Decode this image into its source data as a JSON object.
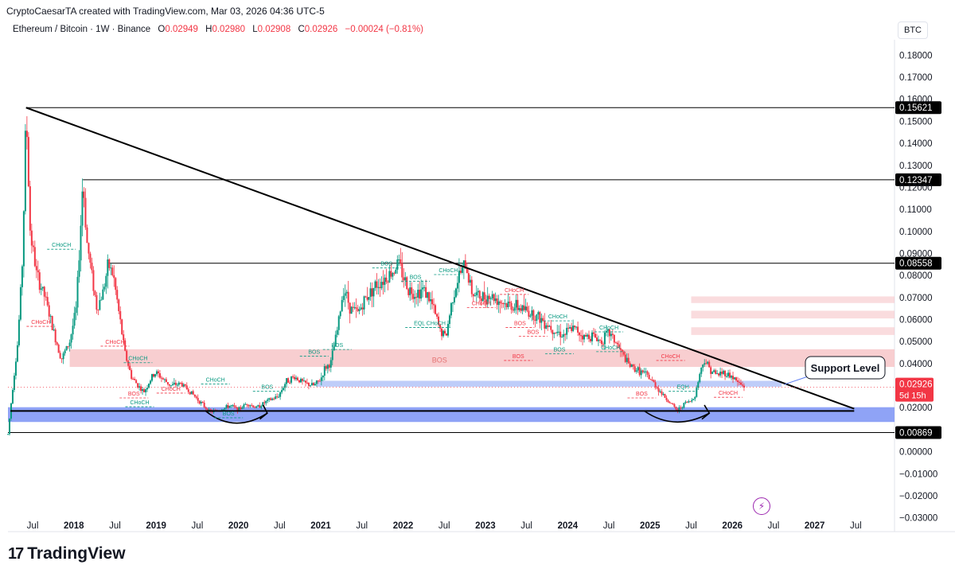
{
  "header": {
    "author_line": "CryptoCaesarTA created with TradingView.com, Mar 03, 2026 04:36 UTC-5"
  },
  "legend": {
    "symbol": "Ethereum / Bitcoin · 1W · Binance",
    "open_label": "O",
    "open_value": "0.02949",
    "high_label": "H",
    "high_value": "0.02980",
    "low_label": "L",
    "low_value": "0.02908",
    "close_label": "C",
    "close_value": "0.02926",
    "change": "−0.00024 (−0.81%)"
  },
  "currency": "BTC",
  "colors": {
    "bull": "#089981",
    "bear": "#f23645",
    "zone_red": "#f7c5c8",
    "zone_blue": "#7b93f5",
    "support_fill": "#5b7cf2",
    "trendline": "#000000"
  },
  "chart_data": {
    "type": "candlestick",
    "title": "Ethereum / Bitcoin · 1W · Binance",
    "ylim": [
      -0.03,
      0.19
    ],
    "y_ticks": [
      "0.18000",
      "0.17000",
      "0.16000",
      "0.15000",
      "0.14000",
      "0.13000",
      "0.12000",
      "0.11000",
      "0.10000",
      "0.09000",
      "0.08000",
      "0.07000",
      "0.06000",
      "0.05000",
      "0.04000",
      "0.03000",
      "0.02000",
      "0.01000",
      "0.00000",
      "−0.01000",
      "−0.02000",
      "−0.03000"
    ],
    "y_tick_values": [
      0.18,
      0.17,
      0.16,
      0.15,
      0.14,
      0.13,
      0.12,
      0.11,
      0.1,
      0.09,
      0.08,
      0.07,
      0.06,
      0.05,
      0.04,
      0.03,
      0.02,
      0.01,
      0.0,
      -0.01,
      -0.02,
      -0.03
    ],
    "x_labels": [
      {
        "t": 2017.5,
        "label": "Jul"
      },
      {
        "t": 2018.0,
        "label": "2018"
      },
      {
        "t": 2018.5,
        "label": "Jul"
      },
      {
        "t": 2019.0,
        "label": "2019"
      },
      {
        "t": 2019.5,
        "label": "Jul"
      },
      {
        "t": 2020.0,
        "label": "2020"
      },
      {
        "t": 2020.5,
        "label": "Jul"
      },
      {
        "t": 2021.0,
        "label": "2021"
      },
      {
        "t": 2021.5,
        "label": "Jul"
      },
      {
        "t": 2022.0,
        "label": "2022"
      },
      {
        "t": 2022.5,
        "label": "Jul"
      },
      {
        "t": 2023.0,
        "label": "2023"
      },
      {
        "t": 2023.5,
        "label": "Jul"
      },
      {
        "t": 2024.0,
        "label": "2024"
      },
      {
        "t": 2024.5,
        "label": "Jul"
      },
      {
        "t": 2025.0,
        "label": "2025"
      },
      {
        "t": 2025.5,
        "label": "Jul"
      },
      {
        "t": 2026.0,
        "label": "2026"
      },
      {
        "t": 2026.5,
        "label": "Jul"
      },
      {
        "t": 2027.0,
        "label": "2027"
      },
      {
        "t": 2027.5,
        "label": "Jul"
      }
    ],
    "x_range": [
      2017.2,
      2027.97
    ],
    "price_path": [
      [
        2017.2,
        0.008
      ],
      [
        2017.26,
        0.03
      ],
      [
        2017.32,
        0.05
      ],
      [
        2017.38,
        0.09
      ],
      [
        2017.42,
        0.1562
      ],
      [
        2017.47,
        0.1
      ],
      [
        2017.55,
        0.08
      ],
      [
        2017.65,
        0.07
      ],
      [
        2017.75,
        0.055
      ],
      [
        2017.85,
        0.042
      ],
      [
        2017.95,
        0.05
      ],
      [
        2018.03,
        0.065
      ],
      [
        2018.08,
        0.1
      ],
      [
        2018.11,
        0.12347
      ],
      [
        2018.16,
        0.095
      ],
      [
        2018.22,
        0.08
      ],
      [
        2018.28,
        0.065
      ],
      [
        2018.35,
        0.072
      ],
      [
        2018.42,
        0.085
      ],
      [
        2018.48,
        0.08
      ],
      [
        2018.56,
        0.06
      ],
      [
        2018.62,
        0.045
      ],
      [
        2018.7,
        0.034
      ],
      [
        2018.78,
        0.03
      ],
      [
        2018.85,
        0.027
      ],
      [
        2018.95,
        0.034
      ],
      [
        2019.0,
        0.036
      ],
      [
        2019.08,
        0.033
      ],
      [
        2019.18,
        0.03
      ],
      [
        2019.3,
        0.031
      ],
      [
        2019.42,
        0.027
      ],
      [
        2019.55,
        0.022
      ],
      [
        2019.65,
        0.018
      ],
      [
        2019.78,
        0.019
      ],
      [
        2019.9,
        0.021
      ],
      [
        2020.0,
        0.019
      ],
      [
        2020.1,
        0.022
      ],
      [
        2020.22,
        0.02
      ],
      [
        2020.35,
        0.023
      ],
      [
        2020.48,
        0.025
      ],
      [
        2020.58,
        0.032
      ],
      [
        2020.68,
        0.034
      ],
      [
        2020.8,
        0.031
      ],
      [
        2020.92,
        0.03
      ],
      [
        2021.0,
        0.033
      ],
      [
        2021.05,
        0.038
      ],
      [
        2021.12,
        0.04
      ],
      [
        2021.2,
        0.055
      ],
      [
        2021.28,
        0.075
      ],
      [
        2021.36,
        0.065
      ],
      [
        2021.45,
        0.063
      ],
      [
        2021.55,
        0.07
      ],
      [
        2021.65,
        0.075
      ],
      [
        2021.75,
        0.078
      ],
      [
        2021.88,
        0.082
      ],
      [
        2021.94,
        0.086
      ],
      [
        2022.0,
        0.08
      ],
      [
        2022.06,
        0.074
      ],
      [
        2022.15,
        0.072
      ],
      [
        2022.25,
        0.074
      ],
      [
        2022.35,
        0.067
      ],
      [
        2022.45,
        0.055
      ],
      [
        2022.52,
        0.052
      ],
      [
        2022.6,
        0.07
      ],
      [
        2022.68,
        0.08
      ],
      [
        2022.76,
        0.085
      ],
      [
        2022.84,
        0.072
      ],
      [
        2022.95,
        0.07
      ],
      [
        2023.05,
        0.071
      ],
      [
        2023.15,
        0.069
      ],
      [
        2023.25,
        0.067
      ],
      [
        2023.35,
        0.066
      ],
      [
        2023.45,
        0.065
      ],
      [
        2023.55,
        0.063
      ],
      [
        2023.65,
        0.061
      ],
      [
        2023.75,
        0.058
      ],
      [
        2023.85,
        0.055
      ],
      [
        2023.95,
        0.053
      ],
      [
        2024.05,
        0.056
      ],
      [
        2024.12,
        0.055
      ],
      [
        2024.2,
        0.052
      ],
      [
        2024.3,
        0.053
      ],
      [
        2024.4,
        0.05
      ],
      [
        2024.5,
        0.054
      ],
      [
        2024.58,
        0.05
      ],
      [
        2024.65,
        0.045
      ],
      [
        2024.75,
        0.039
      ],
      [
        2024.85,
        0.037
      ],
      [
        2024.95,
        0.035
      ],
      [
        2025.05,
        0.031
      ],
      [
        2025.15,
        0.026
      ],
      [
        2025.25,
        0.022
      ],
      [
        2025.33,
        0.0185
      ],
      [
        2025.42,
        0.022
      ],
      [
        2025.5,
        0.023
      ],
      [
        2025.55,
        0.026
      ],
      [
        2025.6,
        0.035
      ],
      [
        2025.66,
        0.042
      ],
      [
        2025.72,
        0.038
      ],
      [
        2025.8,
        0.035
      ],
      [
        2025.9,
        0.036
      ],
      [
        2026.0,
        0.034
      ],
      [
        2026.08,
        0.031
      ],
      [
        2026.15,
        0.0293
      ]
    ],
    "horizontal_levels": [
      {
        "value": 0.15621,
        "label": "0.15621",
        "start": 2017.42
      },
      {
        "value": 0.12347,
        "label": "0.12347",
        "start": 2018.11
      },
      {
        "value": 0.08558,
        "label": "0.08558",
        "start": 2018.42
      },
      {
        "value": 0.00869,
        "label": "0.00869",
        "start": 2017.2
      }
    ],
    "trendline": {
      "from": [
        2017.42,
        0.1562
      ],
      "to": [
        2027.48,
        0.0195
      ]
    },
    "resistance_zones": [
      {
        "from": 2017.95,
        "to": 2027.97,
        "low": 0.0385,
        "high": 0.0465
      },
      {
        "from": 2025.5,
        "to": 2027.97,
        "low": 0.0675,
        "high": 0.0705
      },
      {
        "from": 2025.5,
        "to": 2027.97,
        "low": 0.0605,
        "high": 0.064
      },
      {
        "from": 2025.5,
        "to": 2027.97,
        "low": 0.053,
        "high": 0.0565
      }
    ],
    "support_zones": [
      {
        "from": 2020.95,
        "to": 2026.6,
        "low": 0.0295,
        "high": 0.0322
      },
      {
        "from": 2017.2,
        "to": 2027.97,
        "low": 0.0135,
        "high": 0.0202
      }
    ],
    "current_price": {
      "value": 0.02926,
      "label": "0.02926",
      "countdown": "5d 15h"
    },
    "annotations": [
      {
        "text": "Support Level"
      },
      {
        "text": "BOS"
      },
      {
        "text": "CHoCH"
      },
      {
        "text": "EQL"
      }
    ],
    "structure_marks": [
      {
        "t": 2017.85,
        "v": 0.093,
        "text": "CHoCH",
        "color": "bull"
      },
      {
        "t": 2017.6,
        "v": 0.058,
        "text": "CHoCH",
        "color": "bear"
      },
      {
        "t": 2018.5,
        "v": 0.049,
        "text": "CHoCH",
        "color": "bear"
      },
      {
        "t": 2018.78,
        "v": 0.0415,
        "text": "CHoCH",
        "color": "bull"
      },
      {
        "t": 2018.73,
        "v": 0.0255,
        "text": "BOS",
        "color": "bear"
      },
      {
        "t": 2019.18,
        "v": 0.0277,
        "text": "CHoCH",
        "color": "bear"
      },
      {
        "t": 2019.72,
        "v": 0.0318,
        "text": "CHoCH",
        "color": "bull"
      },
      {
        "t": 2018.8,
        "v": 0.0215,
        "text": "CHoCH",
        "color": "bull"
      },
      {
        "t": 2019.88,
        "v": 0.0165,
        "text": "BOS",
        "color": "bull"
      },
      {
        "t": 2020.35,
        "v": 0.0285,
        "text": "BOS",
        "color": "bull"
      },
      {
        "t": 2020.92,
        "v": 0.0445,
        "text": "BOS",
        "color": "bull"
      },
      {
        "t": 2021.2,
        "v": 0.0475,
        "text": "BOS",
        "color": "bull"
      },
      {
        "t": 2021.8,
        "v": 0.0845,
        "text": "BOS",
        "color": "bull"
      },
      {
        "t": 2022.15,
        "v": 0.0785,
        "text": "BOS",
        "color": "bull"
      },
      {
        "t": 2022.55,
        "v": 0.0815,
        "text": "CHoCH",
        "color": "bull"
      },
      {
        "t": 2022.2,
        "v": 0.0575,
        "text": "EQL",
        "color": "bull"
      },
      {
        "t": 2022.4,
        "v": 0.0575,
        "text": "CHoCH",
        "color": "bull"
      },
      {
        "t": 2022.95,
        "v": 0.0665,
        "text": "CHoCH",
        "color": "bear"
      },
      {
        "t": 2023.35,
        "v": 0.0725,
        "text": "CHoCH",
        "color": "bear"
      },
      {
        "t": 2023.42,
        "v": 0.0575,
        "text": "BOS",
        "color": "bear"
      },
      {
        "t": 2023.58,
        "v": 0.0535,
        "text": "BOS",
        "color": "bear"
      },
      {
        "t": 2023.88,
        "v": 0.0605,
        "text": "CHoCH",
        "color": "bull"
      },
      {
        "t": 2023.9,
        "v": 0.0455,
        "text": "BOS",
        "color": "bull"
      },
      {
        "t": 2024.5,
        "v": 0.0555,
        "text": "CHoCH",
        "color": "bull"
      },
      {
        "t": 2024.52,
        "v": 0.0465,
        "text": "CHoCH",
        "color": "bull"
      },
      {
        "t": 2023.4,
        "v": 0.0425,
        "text": "BOS",
        "color": "bear"
      },
      {
        "t": 2025.25,
        "v": 0.0425,
        "text": "CHoCH",
        "color": "bear"
      },
      {
        "t": 2024.9,
        "v": 0.0255,
        "text": "BOS",
        "color": "bear"
      },
      {
        "t": 2025.4,
        "v": 0.0285,
        "text": "EQH",
        "color": "bull"
      },
      {
        "t": 2025.95,
        "v": 0.0258,
        "text": "CHoCH",
        "color": "bear"
      }
    ]
  }
}
